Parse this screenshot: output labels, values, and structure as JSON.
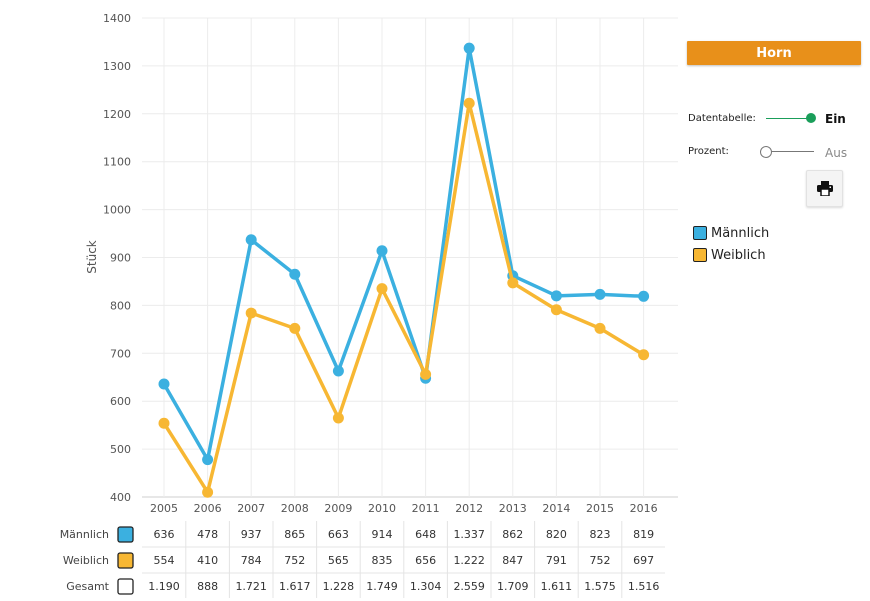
{
  "controls": {
    "title_button": "Horn",
    "datatable_label": "Datentabelle:",
    "datatable_state": "Ein",
    "percent_label": "Prozent:",
    "percent_state": "Aus",
    "print_icon": "printer-icon",
    "on_color": "#1A9E5A",
    "off_color": "#777777"
  },
  "chart_data": {
    "type": "line",
    "x": [
      "2005",
      "2006",
      "2007",
      "2008",
      "2009",
      "2010",
      "2011",
      "2012",
      "2013",
      "2014",
      "2015",
      "2016"
    ],
    "ylabel": "Stück",
    "xlabel": "",
    "ylim": [
      400,
      1400
    ],
    "yticks": [
      400,
      500,
      600,
      700,
      800,
      900,
      1000,
      1100,
      1200,
      1300,
      1400
    ],
    "grid": true,
    "legend_position": "right",
    "series": [
      {
        "name": "Männlich",
        "color": "#3BB0E0",
        "values": [
          636,
          478,
          937,
          865,
          663,
          914,
          648,
          1337,
          862,
          820,
          823,
          819
        ]
      },
      {
        "name": "Weiblich",
        "color": "#F7B733",
        "values": [
          554,
          410,
          784,
          752,
          565,
          835,
          656,
          1222,
          847,
          791,
          752,
          697
        ]
      }
    ],
    "table": {
      "rows": [
        {
          "label": "Männlich",
          "swatch": "#3BB0E0",
          "cells": [
            "636",
            "478",
            "937",
            "865",
            "663",
            "914",
            "648",
            "1.337",
            "862",
            "820",
            "823",
            "819"
          ]
        },
        {
          "label": "Weiblich",
          "swatch": "#F7B733",
          "cells": [
            "554",
            "410",
            "784",
            "752",
            "565",
            "835",
            "656",
            "1.222",
            "847",
            "791",
            "752",
            "697"
          ]
        },
        {
          "label": "Gesamt",
          "swatch": "#FFFFFF",
          "cells": [
            "1.190",
            "888",
            "1.721",
            "1.617",
            "1.228",
            "1.749",
            "1.304",
            "2.559",
            "1.709",
            "1.611",
            "1.575",
            "1.516"
          ]
        }
      ]
    }
  }
}
